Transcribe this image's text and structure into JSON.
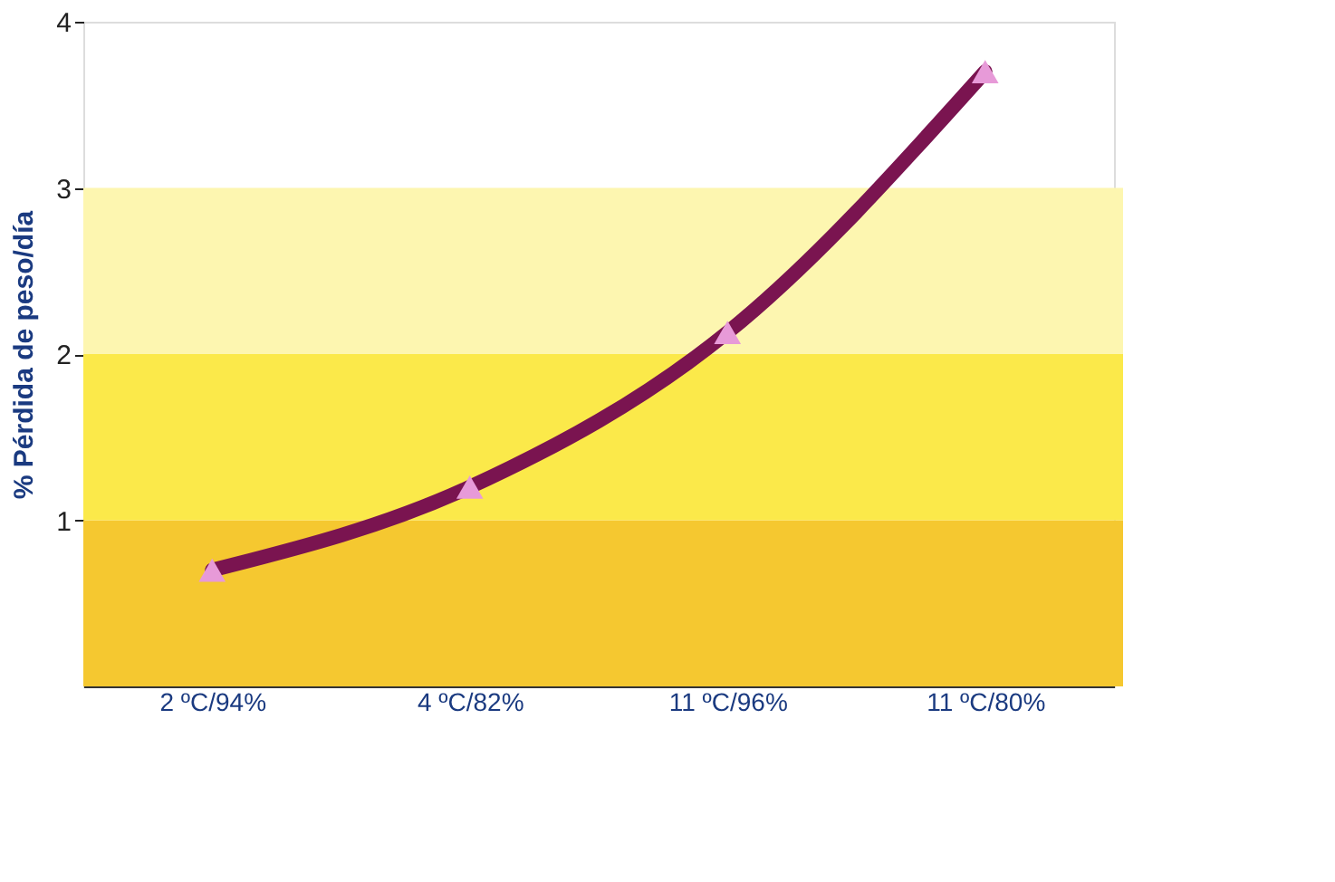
{
  "chart_data": {
    "type": "line",
    "ylabel": "% Pérdida de peso/día",
    "categories": [
      "2 ºC/94%",
      "4 ºC/82%",
      "11 ºC/96%",
      "11 ºC/80%"
    ],
    "series": [
      {
        "color": "#7a1450",
        "values": [
          0.7,
          1.2,
          2.13,
          3.7
        ]
      }
    ],
    "ylim": [
      0,
      4
    ],
    "yticks": [
      1,
      2,
      3,
      4
    ],
    "bands": [
      {
        "axis": "y",
        "from": 0,
        "to": 1,
        "color": "#f5c830"
      },
      {
        "axis": "y",
        "from": 1,
        "to": 2,
        "color": "#fbe94a"
      },
      {
        "axis": "y",
        "from": 2,
        "to": 3,
        "color": "#fdf6b0"
      }
    ],
    "marker": "triangle",
    "grid": false
  }
}
